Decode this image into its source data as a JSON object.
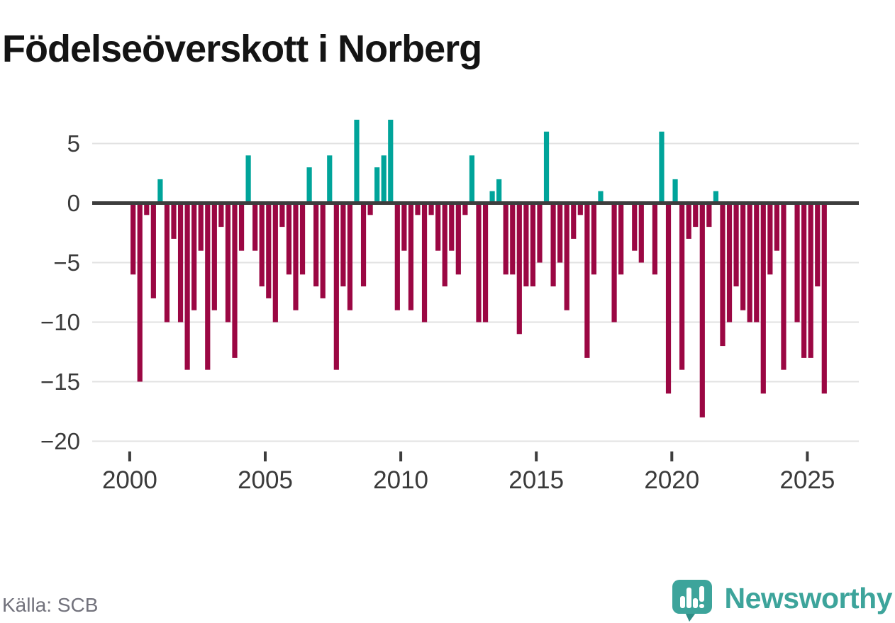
{
  "title": "Födelseöverskott i Norberg",
  "source": "Källa: SCB",
  "branding": {
    "name": "Newsworthy",
    "icon": "newsworthy-speech-bubble-chart-icon"
  },
  "colors": {
    "background": "#ffffff",
    "title_text": "#141414",
    "axis_text": "#3a3a3a",
    "grid": "#e2e2e2",
    "zero_line": "#3d3d3d",
    "positive": "#00a49a",
    "negative": "#9b0743",
    "source_text": "#72727c",
    "logo": "#3da49b",
    "logo_dark": "#2f8d86"
  },
  "chart_data": {
    "type": "bar",
    "title": "Födelseöverskott i Norberg",
    "x_unit": "quarter",
    "start_year": 2000,
    "start_quarter": "2000-Q1",
    "end_quarter": "2025-Q3",
    "x_tick_years": [
      2000,
      2005,
      2010,
      2015,
      2020,
      2025
    ],
    "y_ticks": [
      5,
      0,
      -5,
      -10,
      -15,
      -20
    ],
    "ylim": [
      -20.5,
      7.5
    ],
    "grid": "horizontal-only",
    "legend": "none",
    "series": [
      {
        "name": "Födelseöverskott",
        "values": [
          -6,
          -15,
          -1,
          -8,
          2,
          -10,
          -3,
          -10,
          -14,
          -9,
          -4,
          -14,
          -9,
          -2,
          -10,
          -13,
          -4,
          4,
          -4,
          -7,
          -8,
          -10,
          -2,
          -6,
          -9,
          -6,
          3,
          -7,
          -8,
          4,
          -14,
          -7,
          -9,
          7,
          -7,
          -1,
          3,
          4,
          7,
          -9,
          -4,
          -9,
          -1,
          -10,
          -1,
          -4,
          -7,
          -4,
          -6,
          -1,
          4,
          -10,
          -10,
          1,
          2,
          -6,
          -6,
          -11,
          -7,
          -7,
          -5,
          6,
          -7,
          -5,
          -9,
          -3,
          -1,
          -13,
          -6,
          1,
          0,
          -10,
          -6,
          0,
          -4,
          -5,
          0,
          -6,
          6,
          -16,
          2,
          -14,
          -3,
          -2,
          -18,
          -2,
          1,
          -12,
          -10,
          -7,
          -9,
          -10,
          -10,
          -16,
          -6,
          -4,
          -14,
          0,
          -10,
          -13,
          -13,
          -7,
          -16
        ]
      }
    ]
  }
}
